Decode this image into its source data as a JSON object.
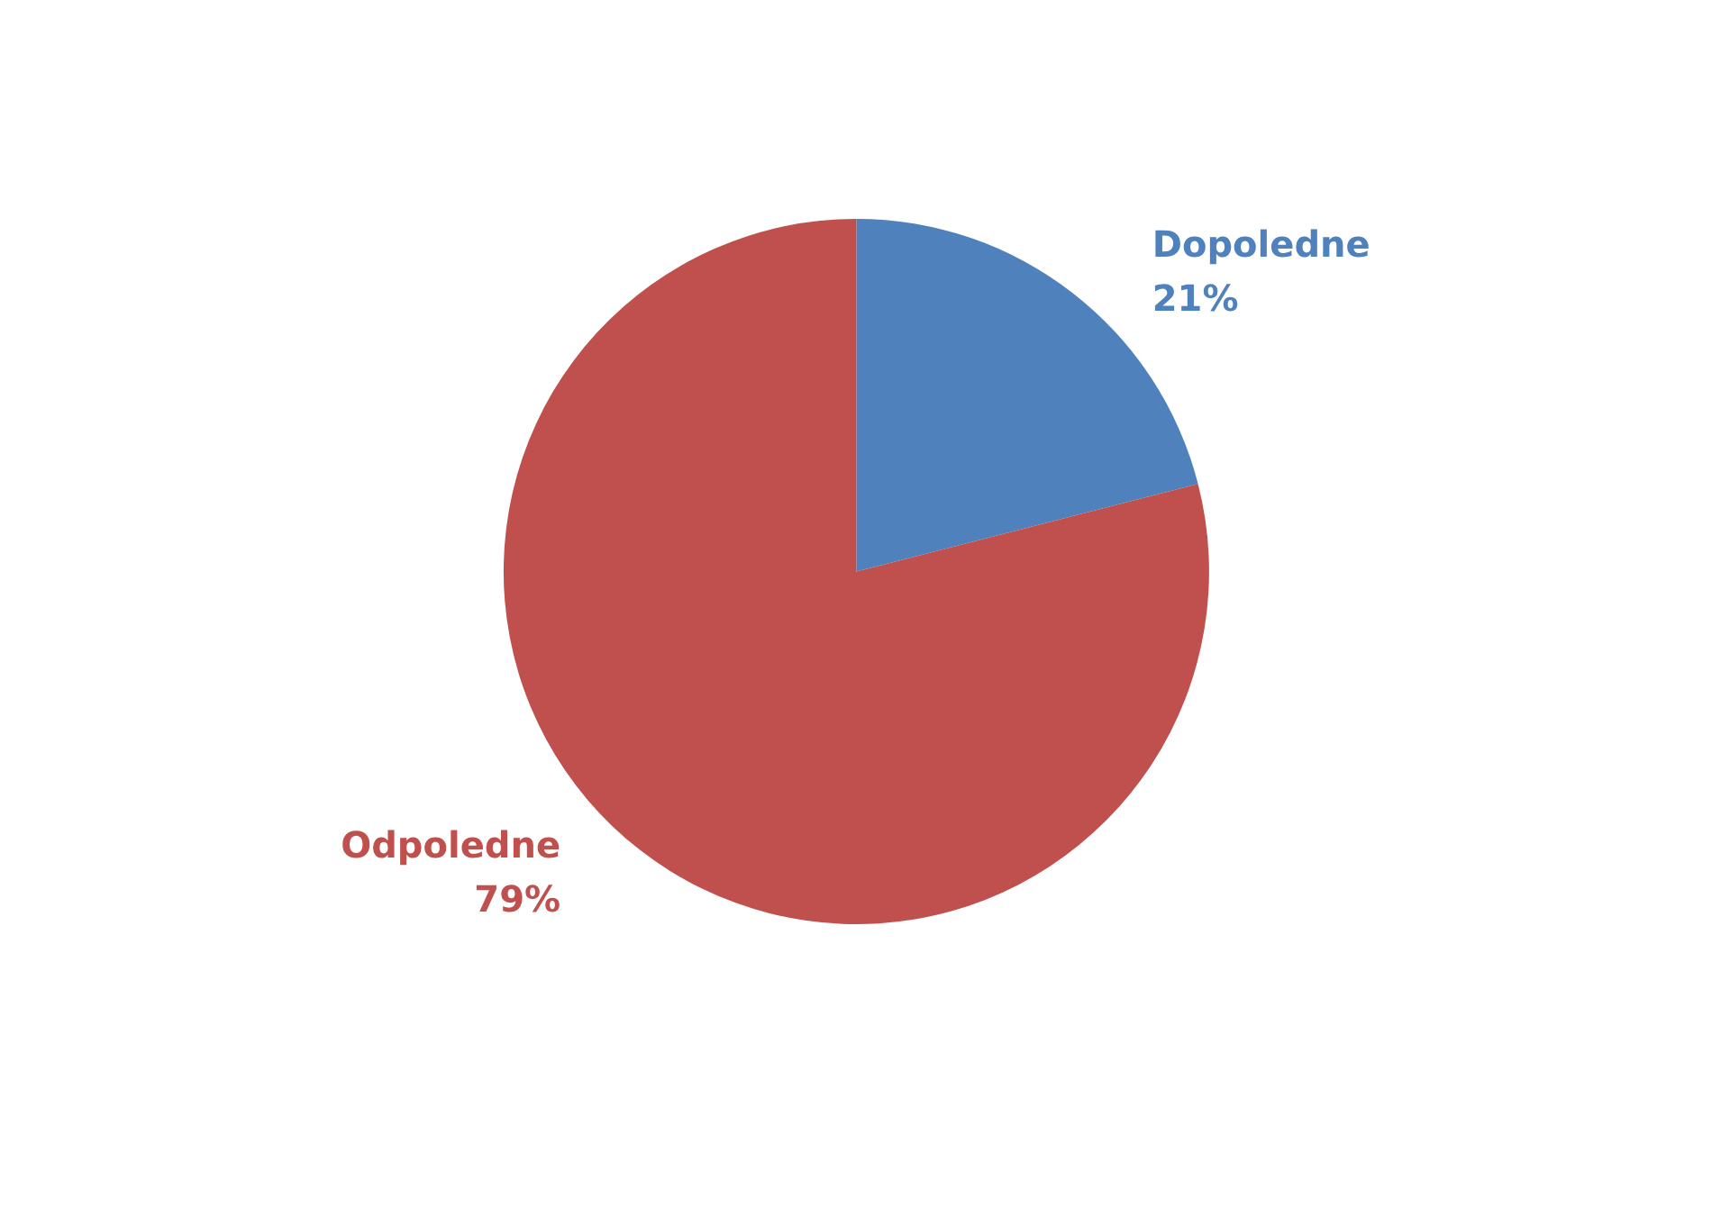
{
  "chart_data": {
    "type": "pie",
    "categories": [
      "Dopoledne",
      "Odpoledne"
    ],
    "values": [
      21,
      79
    ],
    "colors": [
      "#4f81bd",
      "#c0504d"
    ],
    "value_labels": [
      "21%",
      "79%"
    ]
  }
}
